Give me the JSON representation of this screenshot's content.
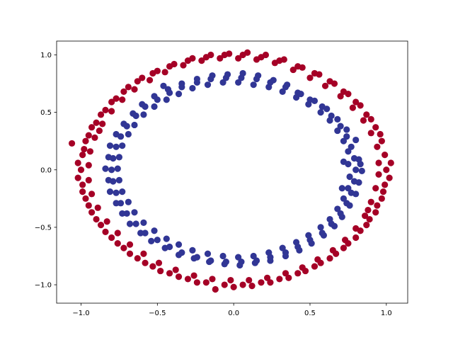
{
  "chart_data": {
    "type": "scatter",
    "title": "",
    "xlabel": "",
    "ylabel": "",
    "xlim": [
      -1.16,
      1.14
    ],
    "ylim": [
      -1.16,
      1.12
    ],
    "xticks": [
      -1.0,
      -0.5,
      0.0,
      0.5,
      1.0
    ],
    "yticks": [
      -1.0,
      -0.5,
      0.0,
      0.5,
      1.0
    ],
    "xtick_labels": [
      "−1.0",
      "−0.5",
      "0.0",
      "0.5",
      "1.0"
    ],
    "ytick_labels": [
      "−1.0",
      "−0.5",
      "0.0",
      "0.5",
      "1.0"
    ],
    "grid": false,
    "legend": "none",
    "series": [
      {
        "color": "#a50026",
        "points": [
          [
            1.0,
            0.0
          ],
          [
            0.99,
            0.13
          ],
          [
            0.97,
            0.25
          ],
          [
            0.93,
            0.37
          ],
          [
            0.87,
            0.48
          ],
          [
            0.8,
            0.59
          ],
          [
            0.72,
            0.68
          ],
          [
            0.63,
            0.77
          ],
          [
            0.53,
            0.84
          ],
          [
            0.42,
            0.9
          ],
          [
            0.3,
            0.95
          ],
          [
            0.18,
            0.98
          ],
          [
            0.06,
            1.0
          ],
          [
            -0.06,
            1.0
          ],
          [
            -0.18,
            0.98
          ],
          [
            -0.3,
            0.95
          ],
          [
            -0.42,
            0.9
          ],
          [
            -0.53,
            0.84
          ],
          [
            -0.63,
            0.77
          ],
          [
            -0.72,
            0.68
          ],
          [
            -0.8,
            0.59
          ],
          [
            -0.87,
            0.48
          ],
          [
            -0.93,
            0.37
          ],
          [
            -0.97,
            0.25
          ],
          [
            -0.99,
            0.13
          ],
          [
            -1.0,
            0.0
          ],
          [
            -0.99,
            -0.13
          ],
          [
            -0.97,
            -0.25
          ],
          [
            -0.93,
            -0.37
          ],
          [
            -0.87,
            -0.48
          ],
          [
            -0.8,
            -0.59
          ],
          [
            -0.72,
            -0.68
          ],
          [
            -0.63,
            -0.77
          ],
          [
            -0.53,
            -0.84
          ],
          [
            -0.42,
            -0.9
          ],
          [
            -0.3,
            -0.95
          ],
          [
            -0.18,
            -0.98
          ],
          [
            -0.06,
            -1.0
          ],
          [
            0.06,
            -1.0
          ],
          [
            0.18,
            -0.98
          ],
          [
            0.3,
            -0.95
          ],
          [
            0.42,
            -0.9
          ],
          [
            0.53,
            -0.84
          ],
          [
            0.63,
            -0.77
          ],
          [
            0.72,
            -0.68
          ],
          [
            0.8,
            -0.59
          ],
          [
            0.87,
            -0.48
          ],
          [
            0.93,
            -0.37
          ],
          [
            0.97,
            -0.25
          ],
          [
            0.99,
            -0.13
          ],
          [
            1.03,
            0.06
          ],
          [
            0.96,
            0.31
          ],
          [
            0.9,
            0.44
          ],
          [
            0.83,
            0.56
          ],
          [
            0.75,
            0.66
          ],
          [
            0.66,
            0.75
          ],
          [
            0.56,
            0.83
          ],
          [
            0.45,
            0.89
          ],
          [
            0.33,
            0.96
          ],
          [
            0.21,
            1.0
          ],
          [
            0.09,
            1.02
          ],
          [
            -0.03,
            1.01
          ],
          [
            -0.15,
            1.0
          ],
          [
            -0.27,
            0.97
          ],
          [
            -0.39,
            0.92
          ],
          [
            -0.5,
            0.86
          ],
          [
            -0.6,
            0.8
          ],
          [
            -0.69,
            0.72
          ],
          [
            -0.77,
            0.62
          ],
          [
            -0.84,
            0.52
          ],
          [
            -0.9,
            0.41
          ],
          [
            -0.95,
            0.3
          ],
          [
            -0.98,
            0.18
          ],
          [
            -1.02,
            0.06
          ],
          [
            -1.06,
            0.23
          ],
          [
            -1.02,
            -0.07
          ],
          [
            -0.99,
            -0.19
          ],
          [
            -0.95,
            -0.31
          ],
          [
            -0.9,
            -0.43
          ],
          [
            -0.84,
            -0.54
          ],
          [
            -0.76,
            -0.64
          ],
          [
            -0.68,
            -0.73
          ],
          [
            -0.58,
            -0.81
          ],
          [
            -0.48,
            -0.88
          ],
          [
            -0.36,
            -0.93
          ],
          [
            -0.24,
            -0.98
          ],
          [
            -0.12,
            -1.04
          ],
          [
            0.0,
            -1.02
          ],
          [
            0.12,
            -1.01
          ],
          [
            0.24,
            -0.98
          ],
          [
            0.36,
            -0.94
          ],
          [
            0.47,
            -0.88
          ],
          [
            0.57,
            -0.81
          ],
          [
            0.67,
            -0.73
          ],
          [
            0.75,
            -0.64
          ],
          [
            0.83,
            -0.53
          ],
          [
            0.89,
            -0.43
          ],
          [
            0.94,
            -0.31
          ],
          [
            0.98,
            -0.19
          ],
          [
            1.02,
            -0.07
          ],
          [
            0.95,
            0.06
          ],
          [
            0.94,
            0.2
          ],
          [
            0.9,
            0.32
          ],
          [
            0.85,
            0.43
          ],
          [
            0.78,
            0.54
          ],
          [
            0.7,
            0.64
          ],
          [
            0.6,
            0.73
          ],
          [
            0.5,
            0.8
          ],
          [
            0.39,
            0.87
          ],
          [
            0.27,
            0.93
          ],
          [
            0.15,
            0.96
          ],
          [
            0.03,
            0.97
          ],
          [
            -0.09,
            0.97
          ],
          [
            -0.21,
            0.95
          ],
          [
            -0.33,
            0.91
          ],
          [
            -0.45,
            0.85
          ],
          [
            -0.55,
            0.78
          ],
          [
            -0.65,
            0.7
          ],
          [
            -0.73,
            0.61
          ],
          [
            -0.8,
            0.51
          ],
          [
            -0.86,
            0.4
          ],
          [
            -0.91,
            0.28
          ],
          [
            -0.94,
            0.16
          ],
          [
            -0.95,
            0.04
          ],
          [
            -0.95,
            -0.09
          ],
          [
            -0.93,
            -0.21
          ],
          [
            -0.89,
            -0.33
          ],
          [
            -0.83,
            -0.45
          ],
          [
            -0.76,
            -0.55
          ],
          [
            -0.68,
            -0.65
          ],
          [
            -0.59,
            -0.73
          ],
          [
            -0.49,
            -0.81
          ],
          [
            -0.38,
            -0.87
          ],
          [
            -0.26,
            -0.92
          ],
          [
            -0.14,
            -0.95
          ],
          [
            -0.02,
            -0.96
          ],
          [
            0.1,
            -0.96
          ],
          [
            0.22,
            -0.94
          ],
          [
            0.34,
            -0.9
          ],
          [
            0.45,
            -0.85
          ],
          [
            0.55,
            -0.78
          ],
          [
            0.65,
            -0.7
          ],
          [
            0.73,
            -0.61
          ],
          [
            0.8,
            -0.51
          ],
          [
            0.86,
            -0.4
          ],
          [
            0.9,
            -0.28
          ],
          [
            0.93,
            -0.16
          ],
          [
            0.95,
            -0.04
          ],
          [
            0.88,
            -0.35
          ],
          [
            -0.88,
            0.34
          ]
        ]
      },
      {
        "color": "#313695",
        "points": [
          [
            0.8,
            0.0
          ],
          [
            0.79,
            0.1
          ],
          [
            0.77,
            0.2
          ],
          [
            0.74,
            0.29
          ],
          [
            0.7,
            0.38
          ],
          [
            0.64,
            0.47
          ],
          [
            0.58,
            0.55
          ],
          [
            0.5,
            0.61
          ],
          [
            0.42,
            0.67
          ],
          [
            0.34,
            0.72
          ],
          [
            0.24,
            0.76
          ],
          [
            0.15,
            0.79
          ],
          [
            0.05,
            0.8
          ],
          [
            -0.05,
            0.8
          ],
          [
            -0.15,
            0.79
          ],
          [
            -0.24,
            0.76
          ],
          [
            -0.34,
            0.72
          ],
          [
            -0.42,
            0.67
          ],
          [
            -0.5,
            0.61
          ],
          [
            -0.58,
            0.55
          ],
          [
            -0.64,
            0.47
          ],
          [
            -0.7,
            0.38
          ],
          [
            -0.74,
            0.29
          ],
          [
            -0.77,
            0.2
          ],
          [
            -0.79,
            0.1
          ],
          [
            -0.8,
            0.0
          ],
          [
            -0.79,
            -0.1
          ],
          [
            -0.77,
            -0.2
          ],
          [
            -0.74,
            -0.29
          ],
          [
            -0.7,
            -0.38
          ],
          [
            -0.64,
            -0.47
          ],
          [
            -0.58,
            -0.55
          ],
          [
            -0.5,
            -0.61
          ],
          [
            -0.42,
            -0.67
          ],
          [
            -0.34,
            -0.72
          ],
          [
            -0.24,
            -0.76
          ],
          [
            -0.15,
            -0.79
          ],
          [
            -0.05,
            -0.8
          ],
          [
            0.05,
            -0.8
          ],
          [
            0.15,
            -0.79
          ],
          [
            0.24,
            -0.76
          ],
          [
            0.34,
            -0.72
          ],
          [
            0.42,
            -0.67
          ],
          [
            0.5,
            -0.61
          ],
          [
            0.58,
            -0.55
          ],
          [
            0.64,
            -0.47
          ],
          [
            0.7,
            -0.38
          ],
          [
            0.74,
            -0.29
          ],
          [
            0.77,
            -0.2
          ],
          [
            0.79,
            -0.1
          ],
          [
            0.83,
            0.05
          ],
          [
            0.8,
            0.26
          ],
          [
            0.74,
            0.35
          ],
          [
            0.68,
            0.44
          ],
          [
            0.61,
            0.53
          ],
          [
            0.53,
            0.6
          ],
          [
            0.44,
            0.66
          ],
          [
            0.35,
            0.74
          ],
          [
            0.26,
            0.78
          ],
          [
            0.16,
            0.82
          ],
          [
            0.06,
            0.84
          ],
          [
            -0.04,
            0.83
          ],
          [
            -0.14,
            0.82
          ],
          [
            -0.24,
            0.79
          ],
          [
            -0.34,
            0.75
          ],
          [
            -0.43,
            0.7
          ],
          [
            -0.52,
            0.64
          ],
          [
            -0.6,
            0.57
          ],
          [
            -0.66,
            0.49
          ],
          [
            -0.72,
            0.4
          ],
          [
            -0.77,
            0.31
          ],
          [
            -0.81,
            0.21
          ],
          [
            -0.82,
            0.11
          ],
          [
            -0.84,
            0.01
          ],
          [
            -0.82,
            -0.09
          ],
          [
            -0.81,
            -0.19
          ],
          [
            -0.77,
            -0.29
          ],
          [
            -0.73,
            -0.38
          ],
          [
            -0.68,
            -0.47
          ],
          [
            -0.61,
            -0.55
          ],
          [
            -0.54,
            -0.62
          ],
          [
            -0.45,
            -0.68
          ],
          [
            -0.36,
            -0.74
          ],
          [
            -0.26,
            -0.77
          ],
          [
            -0.16,
            -0.8
          ],
          [
            -0.06,
            -0.82
          ],
          [
            0.04,
            -0.83
          ],
          [
            0.14,
            -0.81
          ],
          [
            0.24,
            -0.79
          ],
          [
            0.34,
            -0.75
          ],
          [
            0.43,
            -0.7
          ],
          [
            0.51,
            -0.64
          ],
          [
            0.59,
            -0.57
          ],
          [
            0.66,
            -0.49
          ],
          [
            0.71,
            -0.41
          ],
          [
            0.76,
            -0.31
          ],
          [
            0.8,
            -0.21
          ],
          [
            0.82,
            -0.11
          ],
          [
            0.84,
            -0.01
          ],
          [
            0.82,
            0.09
          ],
          [
            0.75,
            0.05
          ],
          [
            0.75,
            0.16
          ],
          [
            0.72,
            0.25
          ],
          [
            0.68,
            0.34
          ],
          [
            0.63,
            0.43
          ],
          [
            0.57,
            0.5
          ],
          [
            0.49,
            0.57
          ],
          [
            0.41,
            0.63
          ],
          [
            0.32,
            0.68
          ],
          [
            0.23,
            0.72
          ],
          [
            0.13,
            0.74
          ],
          [
            0.03,
            0.76
          ],
          [
            -0.07,
            0.76
          ],
          [
            -0.17,
            0.74
          ],
          [
            -0.27,
            0.71
          ],
          [
            -0.36,
            0.66
          ],
          [
            -0.44,
            0.61
          ],
          [
            -0.52,
            0.55
          ],
          [
            -0.59,
            0.48
          ],
          [
            -0.65,
            0.39
          ],
          [
            -0.69,
            0.31
          ],
          [
            -0.73,
            0.21
          ],
          [
            -0.75,
            0.11
          ],
          [
            -0.76,
            0.01
          ],
          [
            -0.75,
            -0.09
          ],
          [
            -0.73,
            -0.19
          ],
          [
            -0.69,
            -0.28
          ],
          [
            -0.65,
            -0.37
          ],
          [
            -0.59,
            -0.46
          ],
          [
            -0.52,
            -0.53
          ],
          [
            -0.44,
            -0.6
          ],
          [
            -0.36,
            -0.65
          ],
          [
            -0.27,
            -0.7
          ],
          [
            -0.17,
            -0.73
          ],
          [
            -0.07,
            -0.75
          ],
          [
            0.03,
            -0.76
          ],
          [
            0.13,
            -0.75
          ],
          [
            0.23,
            -0.72
          ],
          [
            0.32,
            -0.68
          ],
          [
            0.41,
            -0.63
          ],
          [
            0.49,
            -0.57
          ],
          [
            0.57,
            -0.5
          ],
          [
            0.63,
            -0.43
          ],
          [
            0.68,
            -0.34
          ],
          [
            0.72,
            -0.25
          ],
          [
            0.75,
            -0.16
          ],
          [
            0.76,
            -0.06
          ],
          [
            0.71,
            -0.16
          ],
          [
            -0.46,
            0.73
          ],
          [
            0.72,
            0.07
          ]
        ]
      }
    ]
  }
}
